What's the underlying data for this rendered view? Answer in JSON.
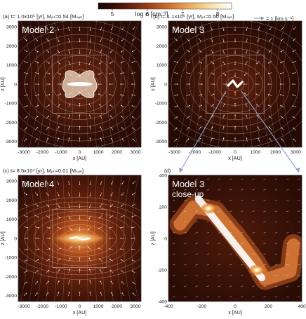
{
  "colorbar": {
    "label": "log n [cm⁻³]",
    "ticks": [
      "5",
      "6",
      "7",
      "8"
    ],
    "range": [
      4.6,
      8.4
    ],
    "colors": [
      "#120402",
      "#3a0f06",
      "#6a220c",
      "#9b3e17",
      "#c66528",
      "#e49344",
      "#f3c277",
      "#fbe8b8",
      "#ffffff"
    ]
  },
  "arrow_legend": "= 1 [km s⁻¹]",
  "panels": [
    {
      "id": "a",
      "header": "(a) t= 1.0x10⁵ [yr], Mₚₜ=0.54 [Mₛᵤₙ]",
      "model": "Model 2",
      "model_sub": "",
      "xlabel": "x [AU]",
      "ylabel": "z [AU]",
      "xticks": [
        "-3000",
        "-2000",
        "-1000",
        "0",
        "1000",
        "2000",
        "3000"
      ],
      "yticks": [
        "3000",
        "2000",
        "1000",
        "0",
        "-1000",
        "-2000",
        "-3000"
      ],
      "range": [
        -3300,
        3300
      ]
    },
    {
      "id": "b",
      "header": "(b) t= 1.1x10⁵ [yr], Mₚₜ=0.50 [Mₛᵤₙ]",
      "model": "Model 3",
      "model_sub": "",
      "xlabel": "x [AU]",
      "ylabel": "z [AU]",
      "xticks": [
        "-3000",
        "-2000",
        "-1000",
        "0",
        "1000",
        "2000",
        "3000"
      ],
      "yticks": [
        "3000",
        "2000",
        "1000",
        "0",
        "-1000",
        "-2000",
        "-3000"
      ],
      "range": [
        -3300,
        3300
      ]
    },
    {
      "id": "c",
      "header": "(c) t= 8.5x10⁴ [yr], Mₚₜ=0.01 [Mₛᵤₙ]",
      "model": "Model 4",
      "model_sub": "",
      "xlabel": "x [AU]",
      "ylabel": "z [AU]",
      "xticks": [
        "-3000",
        "-2000",
        "-1000",
        "0",
        "1000",
        "2000",
        "3000"
      ],
      "yticks": [
        "3000",
        "2000",
        "1000",
        "0",
        "-1000",
        "-2000",
        "-3000"
      ],
      "range": [
        -3300,
        3300
      ]
    },
    {
      "id": "d",
      "header": "(d)",
      "model": "Model 3",
      "model_sub": "close-up",
      "xlabel": "x [AU]",
      "ylabel": "z [AU]",
      "xticks": [
        "-400",
        "-200",
        "0",
        "200",
        "400"
      ],
      "yticks": [
        "400",
        "200",
        "0",
        "-200",
        "-400"
      ],
      "range": [
        -400,
        400
      ]
    }
  ]
}
